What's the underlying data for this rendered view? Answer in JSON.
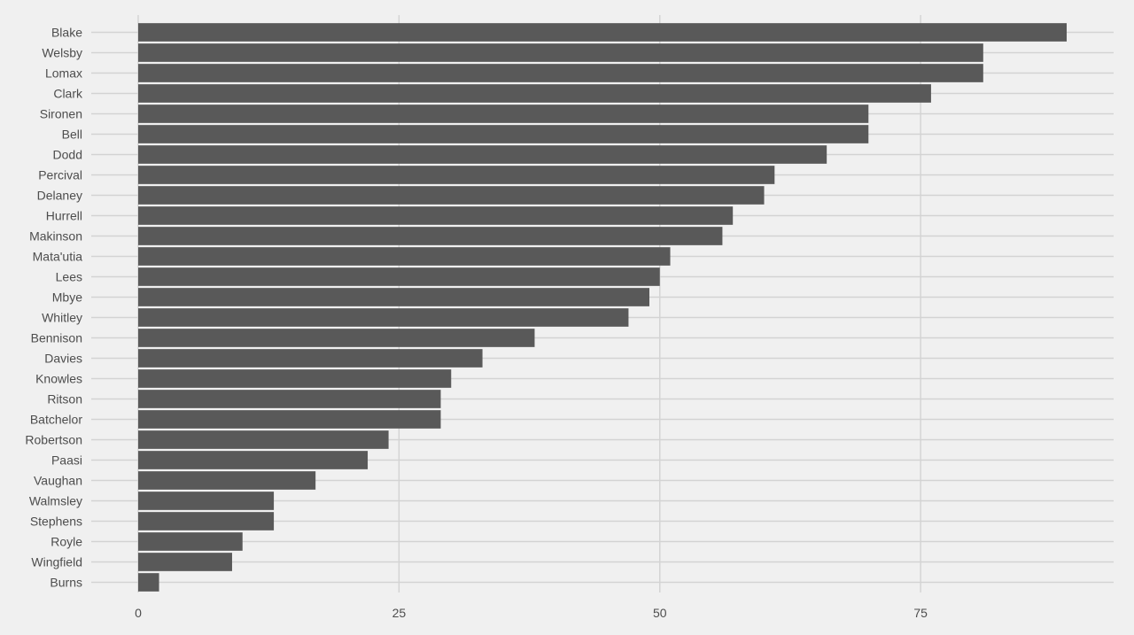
{
  "chart_data": {
    "type": "bar",
    "orientation": "horizontal",
    "title": "",
    "xlabel": "",
    "ylabel": "",
    "categories": [
      "Blake",
      "Welsby",
      "Lomax",
      "Clark",
      "Sironen",
      "Bell",
      "Dodd",
      "Percival",
      "Delaney",
      "Hurrell",
      "Makinson",
      "Mata'utia",
      "Lees",
      "Mbye",
      "Whitley",
      "Bennison",
      "Davies",
      "Knowles",
      "Ritson",
      "Batchelor",
      "Robertson",
      "Paasi",
      "Vaughan",
      "Walmsley",
      "Stephens",
      "Royle",
      "Wingfield",
      "Burns"
    ],
    "values": [
      89,
      81,
      81,
      76,
      70,
      70,
      66,
      61,
      60,
      57,
      56,
      51,
      50,
      49,
      47,
      38,
      33,
      30,
      29,
      29,
      24,
      22,
      17,
      13,
      13,
      10,
      9,
      2
    ],
    "xlim": [
      -4.5,
      93.5
    ],
    "xticks": [
      0,
      25,
      50,
      75
    ],
    "xtick_labels": [
      "0",
      "25",
      "50",
      "75"
    ],
    "grid": true,
    "legend": "none",
    "colors": {
      "bar": "#595959",
      "background": "#f0f0f0",
      "grid": "#d3d3d3",
      "text": "#4d4d4d"
    }
  }
}
